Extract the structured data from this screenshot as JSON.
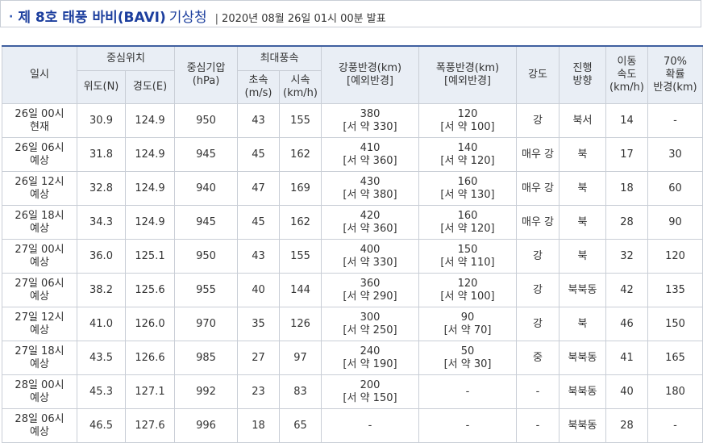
{
  "header": {
    "bullet": "·",
    "title": "제 8호 태풍 바비(BAVI)",
    "subtitle": "기상청",
    "separator": "|",
    "issued": "2020년 08월 26일 01시 00분 발표"
  },
  "table": {
    "headers": {
      "time": "일시",
      "center_position": "중심위치",
      "lat": "위도(N)",
      "lon": "경도(E)",
      "pressure_line1": "중심기압",
      "pressure_line2": "(hPa)",
      "max_wind": "최대풍속",
      "wind_ms_line1": "초속",
      "wind_ms_line2": "(m/s)",
      "wind_kmh_line1": "시속",
      "wind_kmh_line2": "(km/h)",
      "strong_radius_line1": "강풍반경(km)",
      "strong_radius_line2": "[예외반경]",
      "storm_radius_line1": "폭풍반경(km)",
      "storm_radius_line2": "[예외반경]",
      "intensity": "강도",
      "direction_line1": "진행",
      "direction_line2": "방향",
      "speed_line1": "이동",
      "speed_line2": "속도",
      "speed_line3": "(km/h)",
      "prob_line1": "70%",
      "prob_line2": "확률",
      "prob_line3": "반경(km)"
    },
    "rows": [
      {
        "time1": "26일 00시",
        "time2": "현재",
        "lat": "30.9",
        "lon": "124.9",
        "pressure": "950",
        "wind_ms": "43",
        "wind_kmh": "155",
        "strong1": "380",
        "strong2": "[서 약 330]",
        "storm1": "120",
        "storm2": "[서 약 100]",
        "intensity": "강",
        "direction": "북서",
        "speed": "14",
        "prob": "-"
      },
      {
        "time1": "26일 06시",
        "time2": "예상",
        "lat": "31.8",
        "lon": "124.9",
        "pressure": "945",
        "wind_ms": "45",
        "wind_kmh": "162",
        "strong1": "410",
        "strong2": "[서 약 360]",
        "storm1": "140",
        "storm2": "[서 약 120]",
        "intensity": "매우 강",
        "direction": "북",
        "speed": "17",
        "prob": "30"
      },
      {
        "time1": "26일 12시",
        "time2": "예상",
        "lat": "32.8",
        "lon": "124.9",
        "pressure": "940",
        "wind_ms": "47",
        "wind_kmh": "169",
        "strong1": "430",
        "strong2": "[서 약 380]",
        "storm1": "160",
        "storm2": "[서 약 130]",
        "intensity": "매우 강",
        "direction": "북",
        "speed": "18",
        "prob": "60"
      },
      {
        "time1": "26일 18시",
        "time2": "예상",
        "lat": "34.3",
        "lon": "124.9",
        "pressure": "945",
        "wind_ms": "45",
        "wind_kmh": "162",
        "strong1": "420",
        "strong2": "[서 약 360]",
        "storm1": "160",
        "storm2": "[서 약 120]",
        "intensity": "매우 강",
        "direction": "북",
        "speed": "28",
        "prob": "90"
      },
      {
        "time1": "27일 00시",
        "time2": "예상",
        "lat": "36.0",
        "lon": "125.1",
        "pressure": "950",
        "wind_ms": "43",
        "wind_kmh": "155",
        "strong1": "400",
        "strong2": "[서 약 330]",
        "storm1": "150",
        "storm2": "[서 약 110]",
        "intensity": "강",
        "direction": "북",
        "speed": "32",
        "prob": "120"
      },
      {
        "time1": "27일 06시",
        "time2": "예상",
        "lat": "38.2",
        "lon": "125.6",
        "pressure": "955",
        "wind_ms": "40",
        "wind_kmh": "144",
        "strong1": "360",
        "strong2": "[서 약 290]",
        "storm1": "120",
        "storm2": "[서 약 100]",
        "intensity": "강",
        "direction": "북북동",
        "speed": "42",
        "prob": "135"
      },
      {
        "time1": "27일 12시",
        "time2": "예상",
        "lat": "41.0",
        "lon": "126.0",
        "pressure": "970",
        "wind_ms": "35",
        "wind_kmh": "126",
        "strong1": "300",
        "strong2": "[서 약 250]",
        "storm1": "90",
        "storm2": "[서 약 70]",
        "intensity": "강",
        "direction": "북",
        "speed": "46",
        "prob": "150"
      },
      {
        "time1": "27일 18시",
        "time2": "예상",
        "lat": "43.5",
        "lon": "126.6",
        "pressure": "985",
        "wind_ms": "27",
        "wind_kmh": "97",
        "strong1": "240",
        "strong2": "[서 약 190]",
        "storm1": "50",
        "storm2": "[서 약 30]",
        "intensity": "중",
        "direction": "북북동",
        "speed": "41",
        "prob": "165"
      },
      {
        "time1": "28일 00시",
        "time2": "예상",
        "lat": "45.3",
        "lon": "127.1",
        "pressure": "992",
        "wind_ms": "23",
        "wind_kmh": "83",
        "strong1": "200",
        "strong2": "[서 약 150]",
        "storm1": "-",
        "storm2": "",
        "intensity": "-",
        "direction": "북북동",
        "speed": "40",
        "prob": "180"
      },
      {
        "time1": "28일 06시",
        "time2": "예상",
        "lat": "46.5",
        "lon": "127.6",
        "pressure": "996",
        "wind_ms": "18",
        "wind_kmh": "65",
        "strong1": "-",
        "strong2": "",
        "storm1": "-",
        "storm2": "",
        "intensity": "-",
        "direction": "북북동",
        "speed": "28",
        "prob": "-"
      }
    ]
  }
}
